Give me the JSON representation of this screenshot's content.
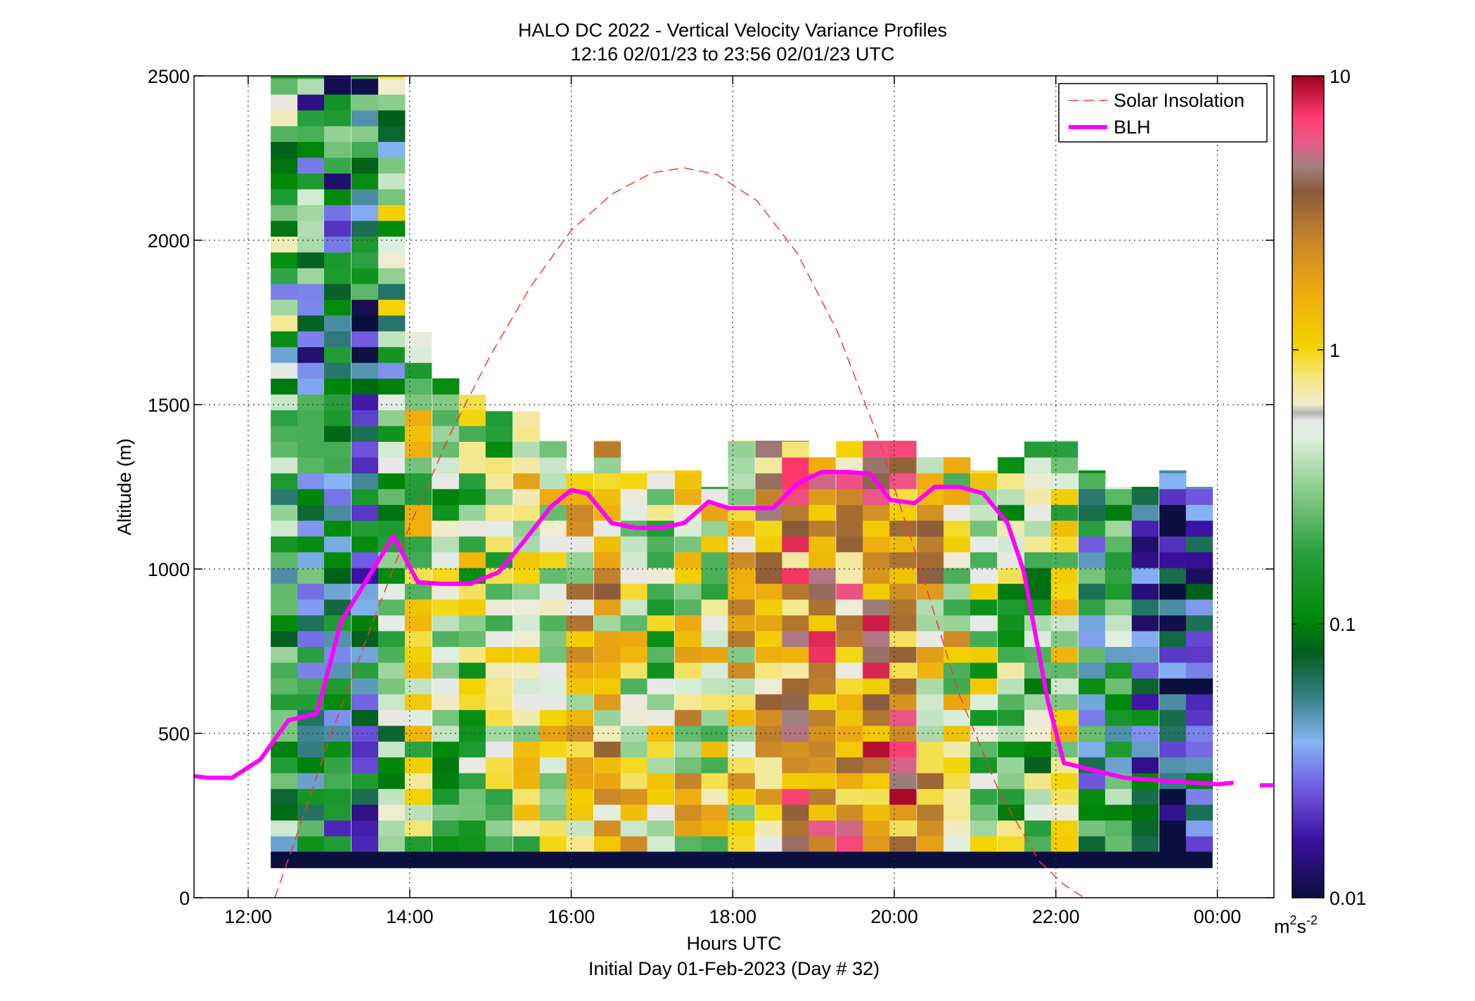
{
  "chart_data": {
    "type": "heatmap",
    "title": "HALO DC 2022 - Vertical Velocity Variance Profiles",
    "subtitle": "12:16 02/01/23 to 23:56 02/01/23  UTC",
    "xlabel": "Hours UTC",
    "xlabel2": "Initial Day 01-Feb-2023 (Day # 32)",
    "ylabel": "Altitude (m)",
    "x_range_hours": [
      11.33,
      24.7
    ],
    "xlim_hours": [
      11.33,
      24.7
    ],
    "ylim": [
      0,
      2500
    ],
    "grid": true,
    "x_ticks": [
      {
        "hour": 12,
        "label": "12:00"
      },
      {
        "hour": 14,
        "label": "14:00"
      },
      {
        "hour": 16,
        "label": "16:00"
      },
      {
        "hour": 18,
        "label": "18:00"
      },
      {
        "hour": 20,
        "label": "20:00"
      },
      {
        "hour": 22,
        "label": "22:00"
      },
      {
        "hour": 24,
        "label": "00:00"
      }
    ],
    "y_ticks": [
      {
        "value": 0,
        "label": "0"
      },
      {
        "value": 500,
        "label": "500"
      },
      {
        "value": 1000,
        "label": "1000"
      },
      {
        "value": 1500,
        "label": "1500"
      },
      {
        "value": 2000,
        "label": "2000"
      },
      {
        "value": 2500,
        "label": "2500"
      }
    ],
    "colorbar": {
      "scale": "log",
      "min": 0.01,
      "max": 10,
      "ticks": [
        {
          "value": 0.01,
          "label": "0.01"
        },
        {
          "value": 0.1,
          "label": "0.1"
        },
        {
          "value": 1,
          "label": "1"
        },
        {
          "value": 10,
          "label": "10"
        }
      ],
      "unit_label": "m",
      "unit_exp1": "2",
      "unit_mid": "s",
      "unit_exp2": "-2"
    },
    "legend": {
      "placement": "top-right",
      "entries": [
        {
          "name": "Solar Insolation",
          "style": "dashed",
          "color": "#ff3333"
        },
        {
          "name": "BLH",
          "style": "solid",
          "color": "#ff00ff"
        }
      ]
    },
    "solar_insolation": {
      "x_hours": [
        12.33,
        12.7,
        13.0,
        13.5,
        14.0,
        14.5,
        15.0,
        15.5,
        16.0,
        16.5,
        17.0,
        17.4,
        17.8,
        18.3,
        18.8,
        19.3,
        19.8,
        20.3,
        20.8,
        21.3,
        21.8,
        22.1,
        22.35
      ],
      "y_m": [
        0,
        260,
        480,
        810,
        1130,
        1410,
        1650,
        1860,
        2030,
        2140,
        2205,
        2220,
        2200,
        2120,
        1960,
        1720,
        1400,
        1020,
        620,
        320,
        110,
        40,
        0
      ]
    },
    "blh": {
      "x_hours": [
        11.33,
        11.5,
        11.8,
        12.15,
        12.5,
        12.85,
        13.15,
        13.5,
        13.8,
        14.1,
        14.4,
        14.75,
        15.1,
        15.4,
        15.75,
        16.0,
        16.2,
        16.5,
        16.8,
        17.1,
        17.4,
        17.7,
        17.95,
        18.2,
        18.5,
        18.8,
        19.1,
        19.4,
        19.7,
        19.95,
        20.25,
        20.5,
        20.8,
        21.1,
        21.4,
        21.6,
        21.9,
        22.1,
        22.35,
        22.6,
        22.85,
        23.1,
        23.4,
        23.7,
        24.0,
        24.2
      ],
      "y_m": [
        370,
        365,
        365,
        420,
        540,
        560,
        840,
        980,
        1100,
        960,
        955,
        955,
        990,
        1080,
        1190,
        1240,
        1230,
        1140,
        1125,
        1125,
        1140,
        1205,
        1185,
        1185,
        1185,
        1260,
        1295,
        1295,
        1290,
        1210,
        1200,
        1250,
        1250,
        1230,
        1140,
        995,
        600,
        410,
        395,
        380,
        365,
        360,
        355,
        350,
        345,
        350
      ]
    },
    "variance_grid_m2s2": {
      "x_start_hours": [
        12.28,
        12.61,
        12.94,
        13.28,
        13.61,
        13.94,
        14.28,
        14.61,
        14.94,
        15.28,
        15.61,
        15.94,
        16.28,
        16.61,
        16.94,
        17.28,
        17.61,
        17.94,
        18.28,
        18.61,
        18.94,
        19.28,
        19.61,
        19.94,
        20.28,
        20.61,
        20.94,
        21.28,
        21.61,
        21.94,
        22.28,
        22.61,
        22.94,
        23.28,
        23.61
      ],
      "cell_width_hours": 0.33,
      "y_start_m": 140,
      "cell_height_m": 48,
      "rows": 24,
      "per_column_top_m": [
        2500,
        2500,
        2500,
        2500,
        2500,
        1720,
        1580,
        1530,
        1480,
        1480,
        1390,
        1300,
        1390,
        1300,
        1300,
        1300,
        1250,
        1390,
        1390,
        1390,
        1340,
        1390,
        1390,
        1390,
        1340,
        1340,
        1300,
        1340,
        1390,
        1390,
        1300,
        1250,
        1250,
        1300,
        1250
      ],
      "per_column_level": [
        0.15,
        0.08,
        0.06,
        0.05,
        0.2,
        0.5,
        0.3,
        0.4,
        0.35,
        0.6,
        0.7,
        0.9,
        1.1,
        0.7,
        0.4,
        0.8,
        0.5,
        1.0,
        1.4,
        2.5,
        3.5,
        2.0,
        2.8,
        3.0,
        1.2,
        0.7,
        0.4,
        0.3,
        0.25,
        0.6,
        0.08,
        0.15,
        0.04,
        0.02,
        0.03
      ]
    },
    "ground_band": {
      "y_from_m": 90,
      "y_to_m": 140,
      "value": 0.01
    }
  }
}
